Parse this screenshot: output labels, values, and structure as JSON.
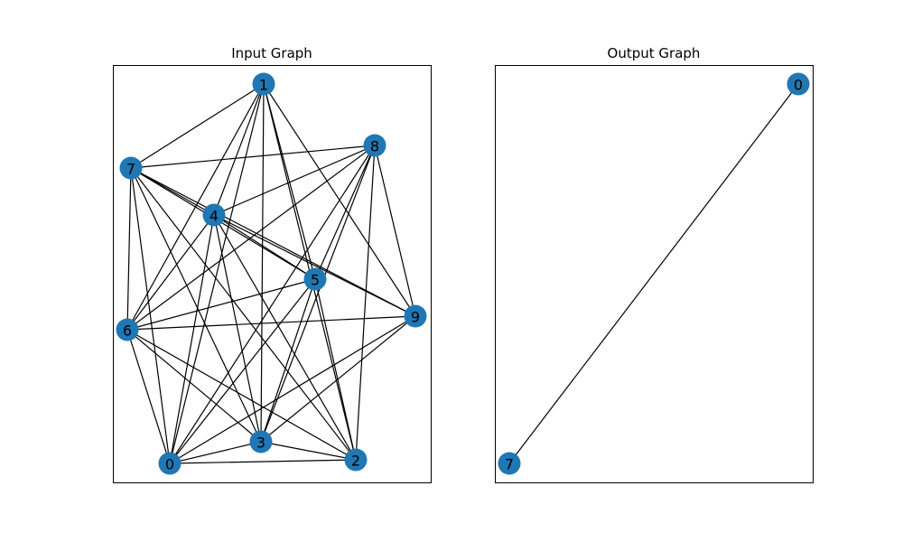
{
  "node_color": "#1f77b4",
  "edge_color": "#000000",
  "graphs": [
    {
      "title": "Input Graph",
      "nodes": [
        "0",
        "1",
        "2",
        "3",
        "4",
        "5",
        "6",
        "7",
        "8",
        "9"
      ],
      "edges": [
        [
          "1",
          "7"
        ],
        [
          "1",
          "4"
        ],
        [
          "1",
          "6"
        ],
        [
          "1",
          "0"
        ],
        [
          "1",
          "3"
        ],
        [
          "1",
          "5"
        ],
        [
          "1",
          "2"
        ],
        [
          "1",
          "9"
        ],
        [
          "8",
          "7"
        ],
        [
          "8",
          "4"
        ],
        [
          "8",
          "6"
        ],
        [
          "8",
          "5"
        ],
        [
          "8",
          "3"
        ],
        [
          "8",
          "0"
        ],
        [
          "8",
          "2"
        ],
        [
          "8",
          "9"
        ],
        [
          "7",
          "4"
        ],
        [
          "7",
          "5"
        ],
        [
          "7",
          "9"
        ],
        [
          "7",
          "6"
        ],
        [
          "7",
          "0"
        ],
        [
          "7",
          "3"
        ],
        [
          "7",
          "2"
        ],
        [
          "4",
          "5"
        ],
        [
          "4",
          "9"
        ],
        [
          "4",
          "6"
        ],
        [
          "4",
          "0"
        ],
        [
          "4",
          "3"
        ],
        [
          "4",
          "2"
        ],
        [
          "5",
          "6"
        ],
        [
          "5",
          "0"
        ],
        [
          "5",
          "3"
        ],
        [
          "5",
          "2"
        ],
        [
          "6",
          "9"
        ],
        [
          "6",
          "3"
        ],
        [
          "6",
          "2"
        ],
        [
          "6",
          "0"
        ],
        [
          "9",
          "0"
        ],
        [
          "9",
          "3"
        ],
        [
          "0",
          "3"
        ],
        [
          "0",
          "2"
        ],
        [
          "3",
          "2"
        ]
      ]
    },
    {
      "title": "Output Graph",
      "nodes": [
        "0",
        "7"
      ],
      "edges": [
        [
          "0",
          "7"
        ]
      ]
    }
  ]
}
